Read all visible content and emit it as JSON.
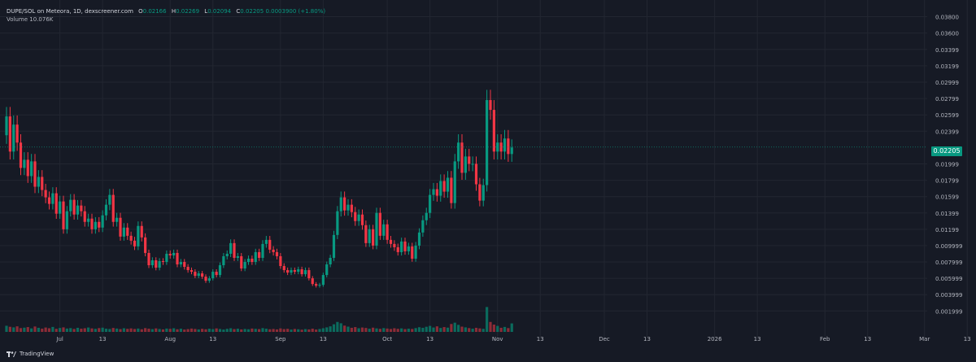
{
  "header": {
    "symbol": "DUPE/SOL on Meteora, 1D, dexscreener.com",
    "open_label": "O",
    "open": "0.02166",
    "high_label": "H",
    "high": "0.02269",
    "low_label": "L",
    "low": "0.02094",
    "close_label": "C",
    "close": "0.02205",
    "change": "0.0003900 (+1.80%)",
    "volume_label": "Volume",
    "volume": "10.076K"
  },
  "last_price": "0.02205",
  "footer": {
    "brand": "TradingView"
  },
  "colors": {
    "up": "#089981",
    "down": "#f23645",
    "background": "#161a25",
    "grid": "#222631",
    "text": "#b2b5be"
  },
  "chart_data": {
    "type": "candlestick",
    "y_axis_ticks": [
      "0.001999",
      "0.003999",
      "0.005999",
      "0.007999",
      "0.009999",
      "0.01199",
      "0.01399",
      "0.01599",
      "0.01799",
      "0.01999",
      "0.02399",
      "0.02599",
      "0.02799",
      "0.02999",
      "0.03199",
      "0.03399",
      "0.03600",
      "0.03800"
    ],
    "y_axis_values": [
      0.001999,
      0.003999,
      0.005999,
      0.007999,
      0.009999,
      0.01199,
      0.01399,
      0.01599,
      0.01799,
      0.01999,
      0.02399,
      0.02599,
      0.02799,
      0.02999,
      0.03199,
      0.03399,
      0.036,
      0.038
    ],
    "x_axis_ticks": [
      {
        "label": "Jul",
        "day": 15
      },
      {
        "label": "13",
        "day": 27
      },
      {
        "label": "Aug",
        "day": 46
      },
      {
        "label": "13",
        "day": 58
      },
      {
        "label": "Sep",
        "day": 77
      },
      {
        "label": "13",
        "day": 89
      },
      {
        "label": "Oct",
        "day": 107
      },
      {
        "label": "13",
        "day": 119
      },
      {
        "label": "Nov",
        "day": 138
      },
      {
        "label": "13",
        "day": 150
      },
      {
        "label": "Dec",
        "day": 168
      },
      {
        "label": "13",
        "day": 180
      },
      {
        "label": "2026",
        "day": 199
      },
      {
        "label": "13",
        "day": 211
      },
      {
        "label": "Feb",
        "day": 230
      },
      {
        "label": "13",
        "day": 242
      },
      {
        "label": "Mar",
        "day": 258
      },
      {
        "label": "13",
        "day": 270
      }
    ],
    "y_range": [
      0.0,
      0.0385
    ],
    "closes": [
      0.0258,
      0.0215,
      0.0248,
      0.0226,
      0.0195,
      0.0205,
      0.0185,
      0.0203,
      0.0172,
      0.0184,
      0.0168,
      0.0159,
      0.0151,
      0.0164,
      0.0139,
      0.0154,
      0.012,
      0.0142,
      0.0156,
      0.0138,
      0.0149,
      0.0142,
      0.0129,
      0.0133,
      0.012,
      0.0129,
      0.0122,
      0.0137,
      0.015,
      0.0162,
      0.0129,
      0.0134,
      0.0111,
      0.0122,
      0.0112,
      0.0106,
      0.0099,
      0.0124,
      0.011,
      0.0091,
      0.0076,
      0.0082,
      0.0073,
      0.0081,
      0.008,
      0.009,
      0.0088,
      0.0091,
      0.0077,
      0.008,
      0.0074,
      0.007,
      0.0068,
      0.0063,
      0.0066,
      0.0062,
      0.0057,
      0.006,
      0.0068,
      0.0064,
      0.0076,
      0.0087,
      0.009,
      0.0103,
      0.0085,
      0.0087,
      0.0072,
      0.008,
      0.0084,
      0.008,
      0.0092,
      0.0085,
      0.0102,
      0.0107,
      0.0095,
      0.0092,
      0.0087,
      0.0075,
      0.007,
      0.0067,
      0.007,
      0.0068,
      0.0071,
      0.0065,
      0.007,
      0.006,
      0.0053,
      0.0051,
      0.0052,
      0.0064,
      0.0077,
      0.0085,
      0.0113,
      0.0142,
      0.0159,
      0.0143,
      0.015,
      0.0141,
      0.013,
      0.0138,
      0.0125,
      0.0103,
      0.012,
      0.01,
      0.014,
      0.0112,
      0.0126,
      0.0107,
      0.0102,
      0.0098,
      0.0092,
      0.0105,
      0.0093,
      0.0099,
      0.0084,
      0.01,
      0.0116,
      0.0131,
      0.014,
      0.0162,
      0.0169,
      0.0161,
      0.0179,
      0.0166,
      0.0183,
      0.0152,
      0.0203,
      0.0226,
      0.0189,
      0.0209,
      0.02,
      0.02,
      0.0175,
      0.0155,
      0.0174,
      0.0278,
      0.0266,
      0.0215,
      0.0226,
      0.0215,
      0.0231,
      0.0212,
      0.022
    ],
    "volumes": [
      4.2,
      3.5,
      3.1,
      3.8,
      2.6,
      2.9,
      3.3,
      2.4,
      3.7,
      2.8,
      2.2,
      3.0,
      2.5,
      3.4,
      2.1,
      2.7,
      3.1,
      2.3,
      2.6,
      2.0,
      2.8,
      2.2,
      2.5,
      3.0,
      2.4,
      2.1,
      2.6,
      2.9,
      2.2,
      2.0,
      2.7,
      2.3,
      1.9,
      2.5,
      2.1,
      2.4,
      2.0,
      2.3,
      1.8,
      2.6,
      2.2,
      1.9,
      2.4,
      2.0,
      1.7,
      2.3,
      2.1,
      2.5,
      1.8,
      2.2,
      1.6,
      1.9,
      2.3,
      2.0,
      1.7,
      2.1,
      1.8,
      2.2,
      1.9,
      2.4,
      2.0,
      1.6,
      2.1,
      2.5,
      1.9,
      2.2,
      1.7,
      2.0,
      1.8,
      2.3,
      2.1,
      1.9,
      2.6,
      2.2,
      1.8,
      2.0,
      1.7,
      2.4,
      1.9,
      2.1,
      1.6,
      2.0,
      1.8,
      1.5,
      1.9,
      1.7,
      2.2,
      1.6,
      2.0,
      2.5,
      3.1,
      3.8,
      5.2,
      6.8,
      5.9,
      4.3,
      3.6,
      2.8,
      3.3,
      2.5,
      3.0,
      2.7,
      2.2,
      2.9,
      2.4,
      2.1,
      2.6,
      2.3,
      2.0,
      2.5,
      2.1,
      2.4,
      1.9,
      2.2,
      2.0,
      2.6,
      3.2,
      2.8,
      3.5,
      4.1,
      3.0,
      3.8,
      2.7,
      3.3,
      2.9,
      5.4,
      6.3,
      4.8,
      3.6,
      3.1,
      2.6,
      2.2,
      2.8,
      2.4,
      2.1,
      17.0,
      6.8,
      5.0,
      4.1,
      2.8,
      3.4,
      2.6,
      5.8
    ]
  }
}
